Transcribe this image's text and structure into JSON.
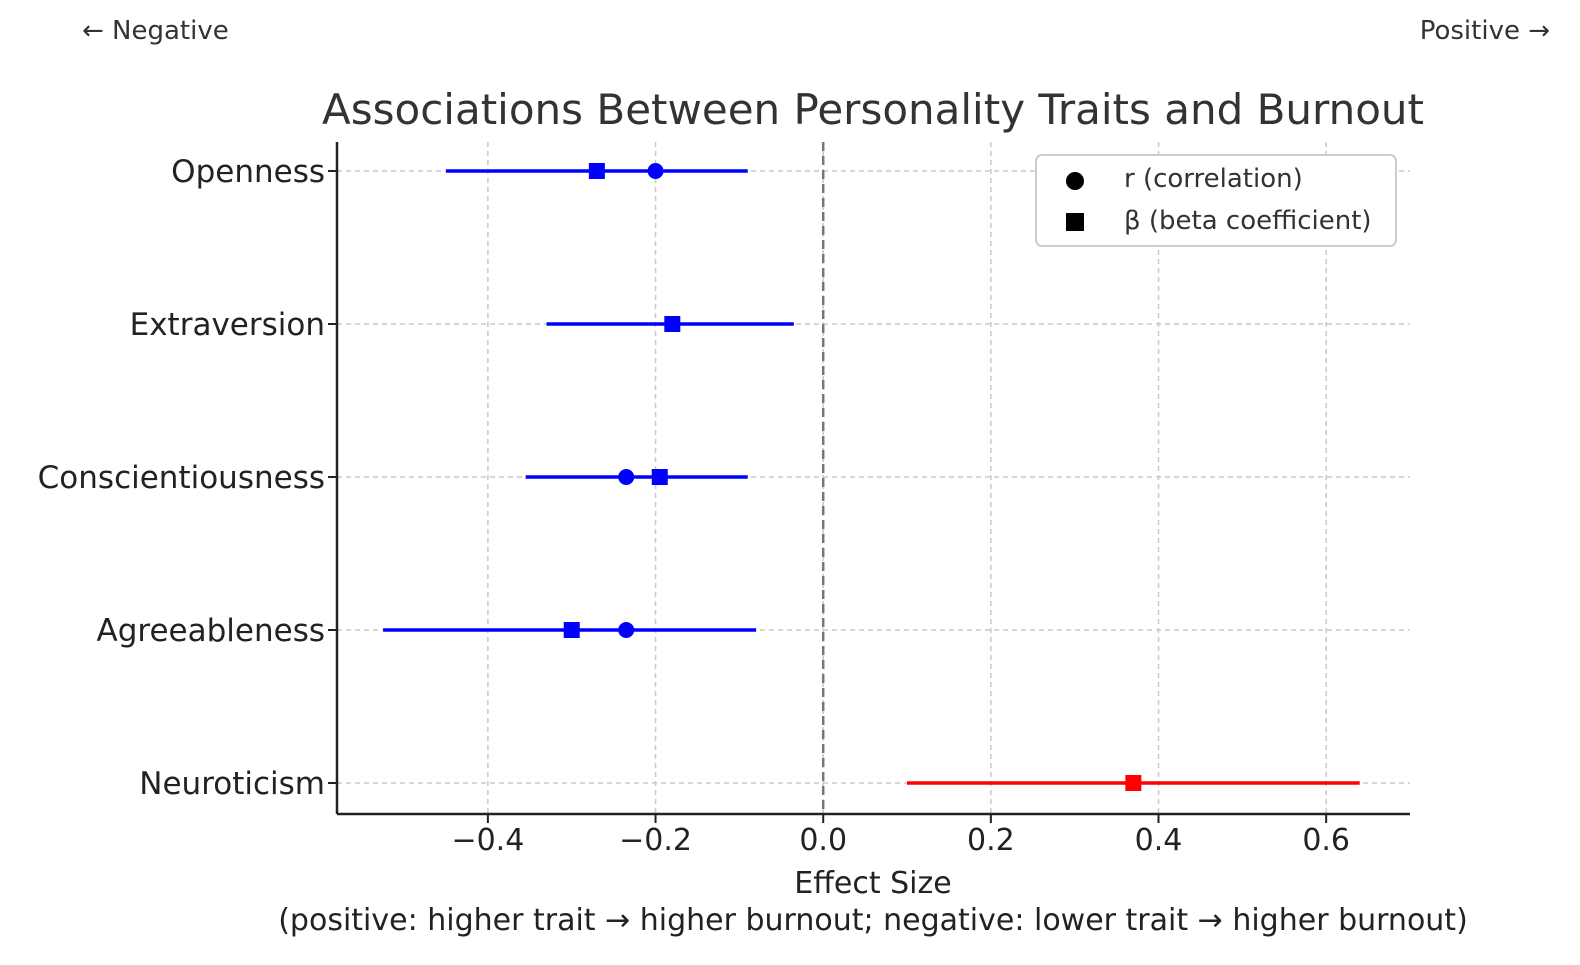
{
  "annotations": {
    "left": "← Negative",
    "right": "Positive →"
  },
  "chart_data": {
    "type": "forest",
    "title": "Associations Between Personality Traits and Burnout",
    "xlabel": "Effect Size",
    "xlabel_note": "(positive: higher trait → higher burnout; negative: lower trait → higher burnout)",
    "xlim": [
      -0.58,
      0.7
    ],
    "xticks": [
      -0.4,
      -0.2,
      0.0,
      0.2,
      0.4,
      0.6
    ],
    "xtick_labels": [
      "−0.4",
      "−0.2",
      "0.0",
      "0.2",
      "0.4",
      "0.6"
    ],
    "grid": true,
    "reference_line": 0.0,
    "legend_position": "upper-right",
    "legend": [
      {
        "marker": "circle",
        "label": "r (correlation)"
      },
      {
        "marker": "square",
        "label": "β (beta coefficient)"
      }
    ],
    "colors": {
      "negative": "#0000ff",
      "positive": "#ff0000",
      "axis": "#222222",
      "grid": "#c8c8c8",
      "refline": "#777777"
    },
    "traits": [
      {
        "name": "Openness",
        "r": -0.2,
        "beta": -0.27,
        "ci": [
          -0.45,
          -0.09
        ],
        "direction": "negative"
      },
      {
        "name": "Extraversion",
        "r": -0.18,
        "beta": -0.18,
        "ci": [
          -0.33,
          -0.035
        ],
        "direction": "negative"
      },
      {
        "name": "Conscientiousness",
        "r": -0.235,
        "beta": -0.195,
        "ci": [
          -0.355,
          -0.09
        ],
        "direction": "negative"
      },
      {
        "name": "Agreeableness",
        "r": -0.235,
        "beta": -0.3,
        "ci": [
          -0.525,
          -0.08
        ],
        "direction": "negative"
      },
      {
        "name": "Neuroticism",
        "r": 0.37,
        "beta": 0.37,
        "ci": [
          0.1,
          0.64
        ],
        "direction": "positive"
      }
    ]
  }
}
